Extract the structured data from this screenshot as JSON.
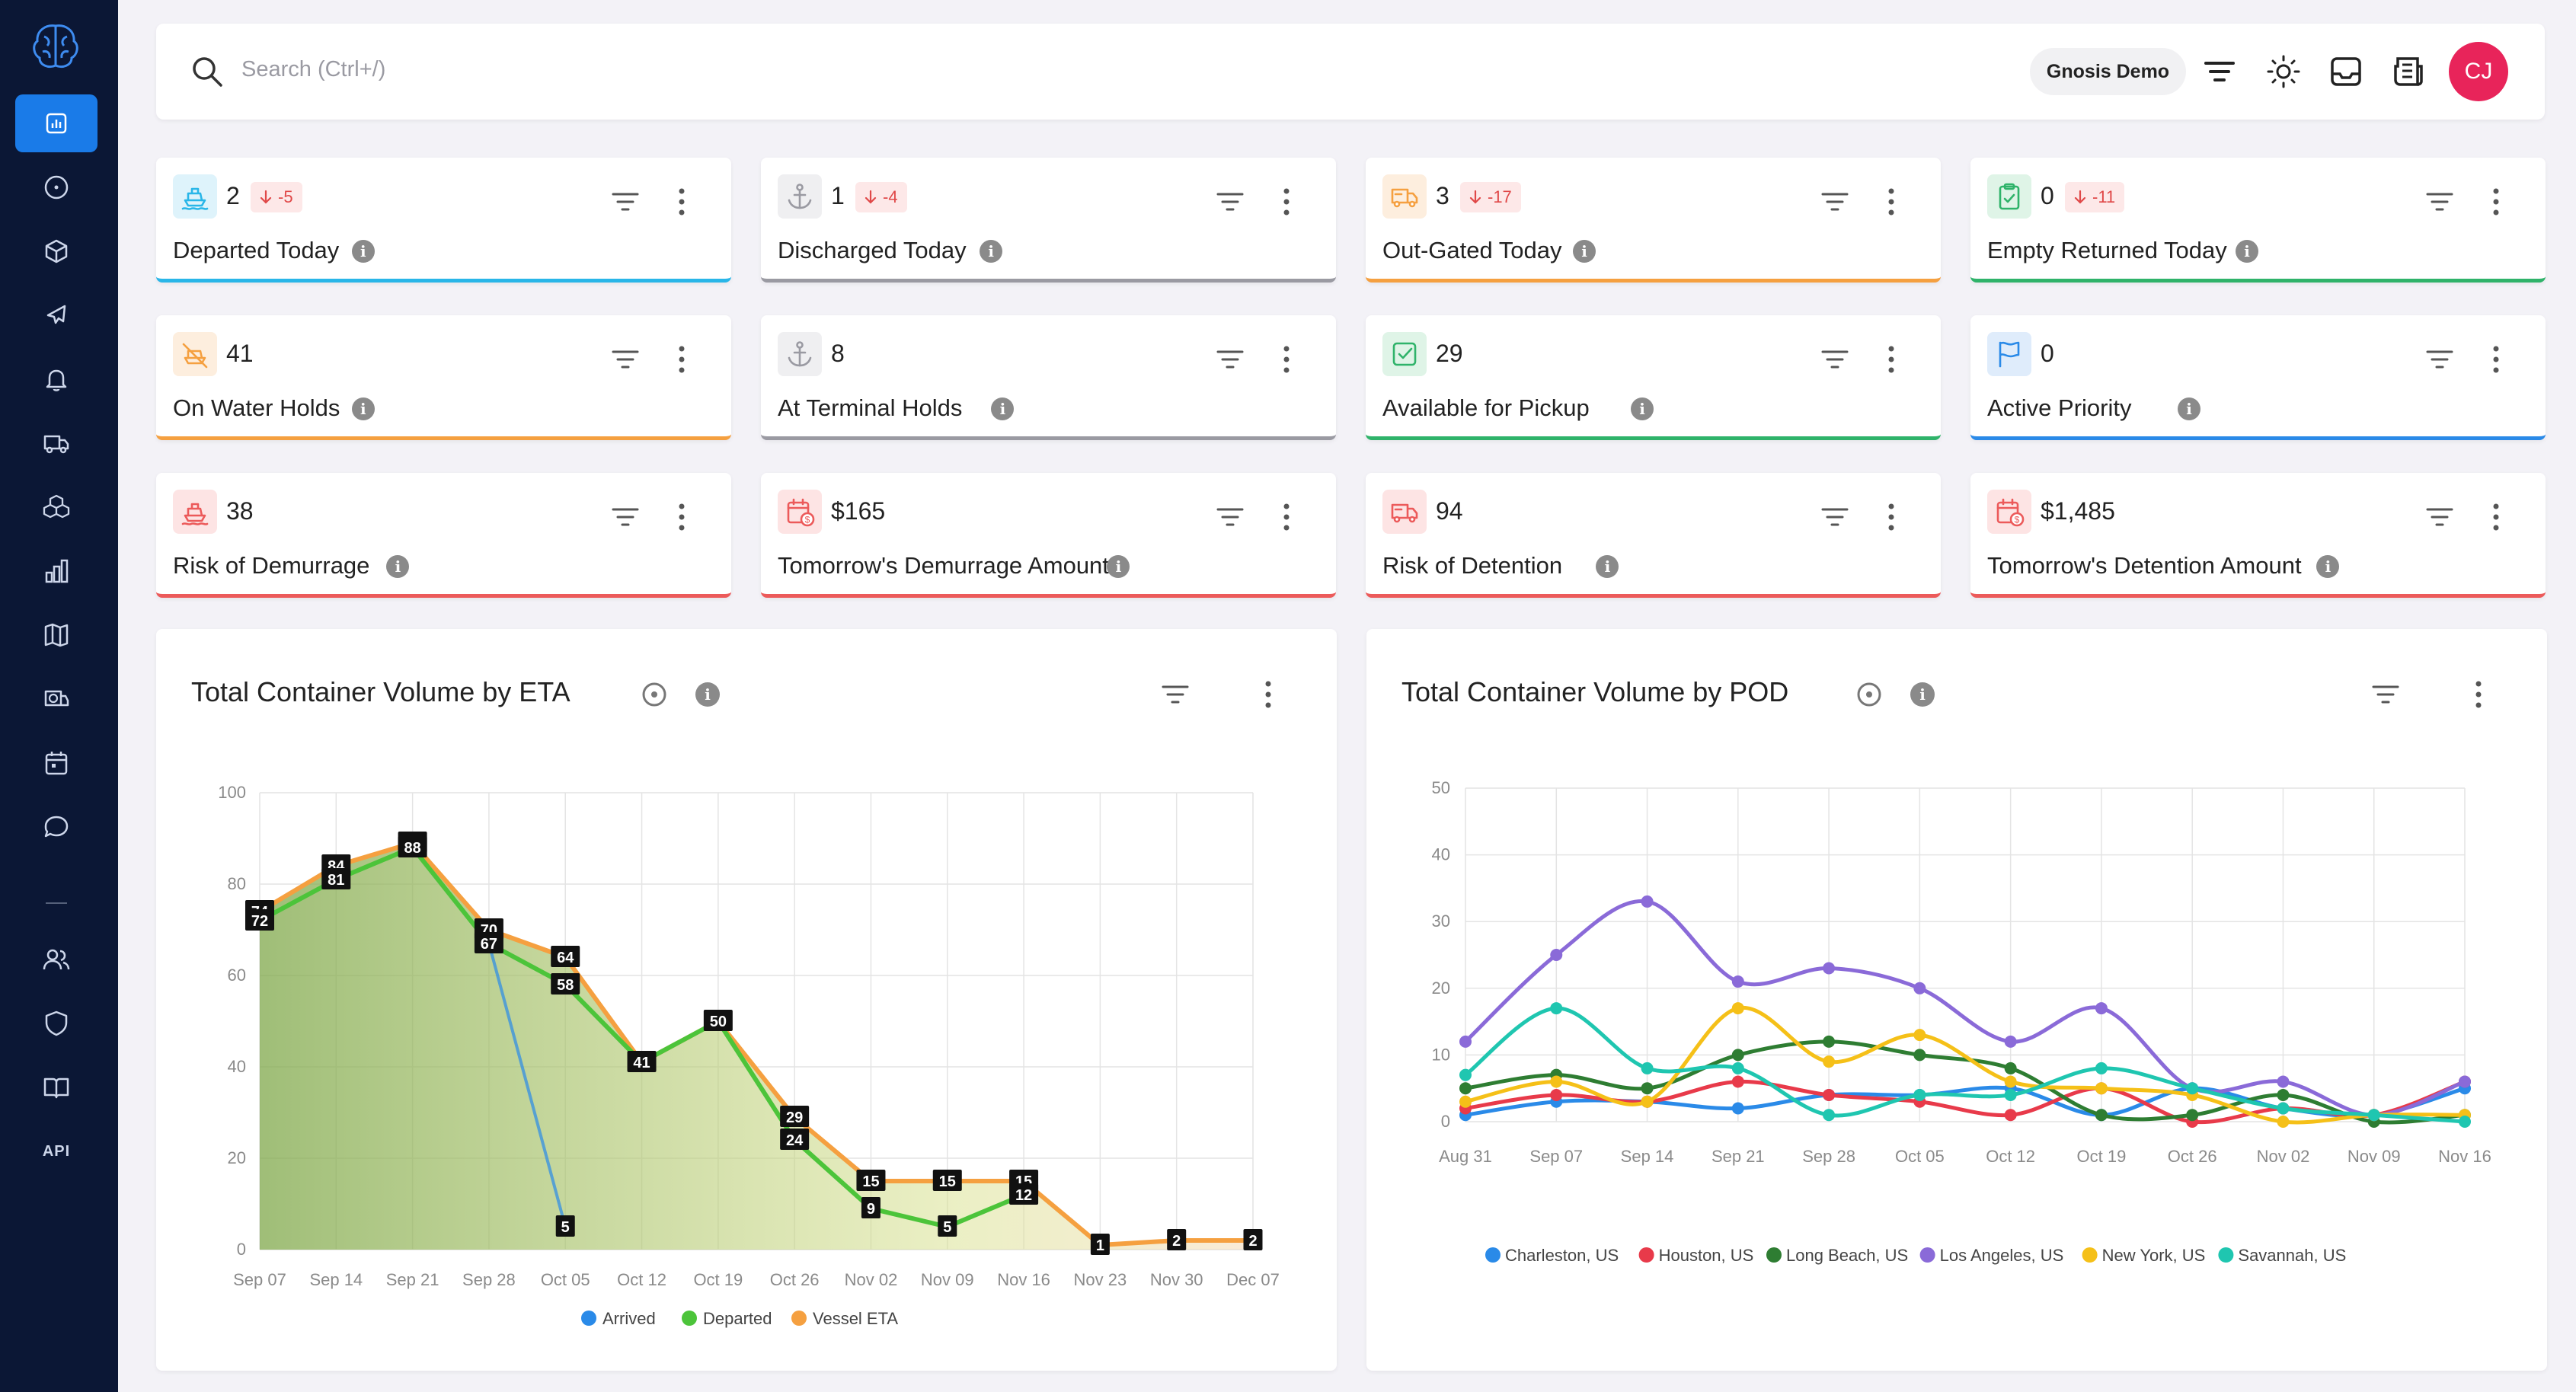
{
  "search": {
    "placeholder": "Search (Ctrl+/)"
  },
  "org": {
    "name": "Gnosis Demo"
  },
  "user": {
    "initials": "CJ"
  },
  "sidebar": {
    "items": [
      {
        "icon": "dashboard-icon",
        "active": true
      },
      {
        "icon": "circle-dot-icon"
      },
      {
        "icon": "cube-icon"
      },
      {
        "icon": "plane-icon"
      },
      {
        "icon": "bell-icon"
      },
      {
        "icon": "truck-icon"
      },
      {
        "icon": "boxes-icon"
      },
      {
        "icon": "bar-chart-icon"
      },
      {
        "icon": "map-icon"
      },
      {
        "icon": "delivery-truck-icon"
      },
      {
        "icon": "calendar-icon"
      },
      {
        "icon": "chat-icon"
      },
      {
        "icon": "users-icon"
      },
      {
        "icon": "shield-icon"
      },
      {
        "icon": "book-icon"
      }
    ],
    "api_label": "API"
  },
  "kpis": [
    {
      "id": "departed",
      "value": "2",
      "delta": "-5",
      "label": "Departed Today",
      "color": "#29b6e8",
      "icon": "ship-icon"
    },
    {
      "id": "discharged",
      "value": "1",
      "delta": "-4",
      "label": "Discharged Today",
      "color": "#9a9aa2",
      "icon": "anchor-icon"
    },
    {
      "id": "outgated",
      "value": "3",
      "delta": "-17",
      "label": "Out-Gated Today",
      "color": "#f5a040",
      "icon": "truck-icon"
    },
    {
      "id": "empty",
      "value": "0",
      "delta": "-11",
      "label": "Empty Returned Today",
      "color": "#2fb36a",
      "icon": "clipboard-icon"
    },
    {
      "id": "onwater",
      "value": "41",
      "delta": "",
      "label": "On Water Holds",
      "color": "#f5a040",
      "icon": "ship-off-icon"
    },
    {
      "id": "terminal",
      "value": "8",
      "delta": "",
      "label": "At Terminal Holds",
      "color": "#9a9aa2",
      "icon": "anchor-icon"
    },
    {
      "id": "pickup",
      "value": "29",
      "delta": "",
      "label": "Available for Pickup",
      "color": "#2fb36a",
      "icon": "check-square-icon"
    },
    {
      "id": "priority",
      "value": "0",
      "delta": "",
      "label": "Active Priority",
      "color": "#2a8ae8",
      "icon": "flag-icon"
    },
    {
      "id": "riskdem",
      "value": "38",
      "delta": "",
      "label": "Risk of Demurrage",
      "color": "#ec5a5a",
      "icon": "ship-icon"
    },
    {
      "id": "demamt",
      "value": "$165",
      "delta": "",
      "label": "Tomorrow's Demurrage Amount",
      "color": "#ec5a5a",
      "icon": "calendar-dollar-icon"
    },
    {
      "id": "riskdet",
      "value": "94",
      "delta": "",
      "label": "Risk of Detention",
      "color": "#ec5a5a",
      "icon": "truck-icon"
    },
    {
      "id": "detamt",
      "value": "$1,485",
      "delta": "",
      "label": "Tomorrow's Detention Amount",
      "color": "#ec5a5a",
      "icon": "calendar-dollar-icon"
    }
  ],
  "charts": {
    "eta_title": "Total Container Volume by ETA",
    "pod_title": "Total Container Volume by POD"
  },
  "chart_data": [
    {
      "type": "area",
      "title": "Total Container Volume by ETA",
      "categories": [
        "Sep 07",
        "Sep 14",
        "Sep 21",
        "Sep 28",
        "Oct 05",
        "Oct 12",
        "Oct 19",
        "Oct 26",
        "Nov 02",
        "Nov 09",
        "Nov 16",
        "Nov 23",
        "Nov 30",
        "Dec 07"
      ],
      "ylim": [
        0,
        100
      ],
      "yticks": [
        0,
        20,
        40,
        60,
        80,
        100
      ],
      "grid": true,
      "legend": "bottom",
      "series": [
        {
          "name": "Arrived",
          "color": "#2a8ae8",
          "values": [
            72,
            81,
            88,
            67,
            5,
            null,
            null,
            null,
            null,
            null,
            null,
            null,
            null,
            null
          ]
        },
        {
          "name": "Departed",
          "color": "#4cc43a",
          "values": [
            72,
            81,
            88,
            67,
            58,
            41,
            50,
            24,
            9,
            5,
            12,
            null,
            null,
            null
          ]
        },
        {
          "name": "Vessel ETA",
          "color": "#f5a040",
          "values": [
            74,
            84,
            89,
            70,
            64,
            41,
            50,
            29,
            15,
            15,
            15,
            1,
            2,
            2
          ]
        }
      ],
      "data_labels": [
        {
          "i": 0,
          "v": 74
        },
        {
          "i": 0,
          "v": 72
        },
        {
          "i": 1,
          "v": 84
        },
        {
          "i": 1,
          "v": 81
        },
        {
          "i": 2,
          "v": 89
        },
        {
          "i": 2,
          "v": 88
        },
        {
          "i": 3,
          "v": 70
        },
        {
          "i": 3,
          "v": 67
        },
        {
          "i": 4,
          "v": 64
        },
        {
          "i": 4,
          "v": 58
        },
        {
          "i": 4,
          "v": 5
        },
        {
          "i": 5,
          "v": 41
        },
        {
          "i": 6,
          "v": 50
        },
        {
          "i": 7,
          "v": 29
        },
        {
          "i": 7,
          "v": 24
        },
        {
          "i": 8,
          "v": 15
        },
        {
          "i": 8,
          "v": 9
        },
        {
          "i": 9,
          "v": 15
        },
        {
          "i": 9,
          "v": 5
        },
        {
          "i": 10,
          "v": 15
        },
        {
          "i": 10,
          "v": 12
        },
        {
          "i": 11,
          "v": 1
        },
        {
          "i": 12,
          "v": 2
        },
        {
          "i": 13,
          "v": 2
        }
      ]
    },
    {
      "type": "line",
      "title": "Total Container Volume by POD",
      "categories": [
        "Aug 31",
        "Sep 07",
        "Sep 14",
        "Sep 21",
        "Sep 28",
        "Oct 05",
        "Oct 12",
        "Oct 19",
        "Oct 26",
        "Nov 02",
        "Nov 09",
        "Nov 16"
      ],
      "ylim": [
        0,
        50
      ],
      "yticks": [
        0,
        10,
        20,
        30,
        40,
        50
      ],
      "grid": true,
      "legend": "bottom",
      "series": [
        {
          "name": "Charleston, US",
          "color": "#2a8ae8",
          "values": [
            1,
            3,
            3,
            2,
            4,
            4,
            5,
            1,
            5,
            2,
            1,
            5
          ]
        },
        {
          "name": "Houston, US",
          "color": "#e83a4a",
          "values": [
            2,
            4,
            3,
            6,
            4,
            3,
            1,
            5,
            0,
            2,
            1,
            6
          ]
        },
        {
          "name": "Long Beach, US",
          "color": "#2e7d32",
          "values": [
            5,
            7,
            5,
            10,
            12,
            10,
            8,
            1,
            1,
            4,
            0,
            1
          ]
        },
        {
          "name": "Los Angeles, US",
          "color": "#8a6ad8",
          "values": [
            12,
            25,
            33,
            21,
            23,
            20,
            12,
            17,
            5,
            6,
            1,
            6
          ]
        },
        {
          "name": "New York, US",
          "color": "#f5c018",
          "values": [
            3,
            6,
            3,
            17,
            9,
            13,
            6,
            5,
            4,
            0,
            1,
            1
          ]
        },
        {
          "name": "Savannah, US",
          "color": "#1fc6b0",
          "values": [
            7,
            17,
            8,
            8,
            1,
            4,
            4,
            8,
            5,
            2,
            1,
            0
          ]
        }
      ]
    }
  ]
}
